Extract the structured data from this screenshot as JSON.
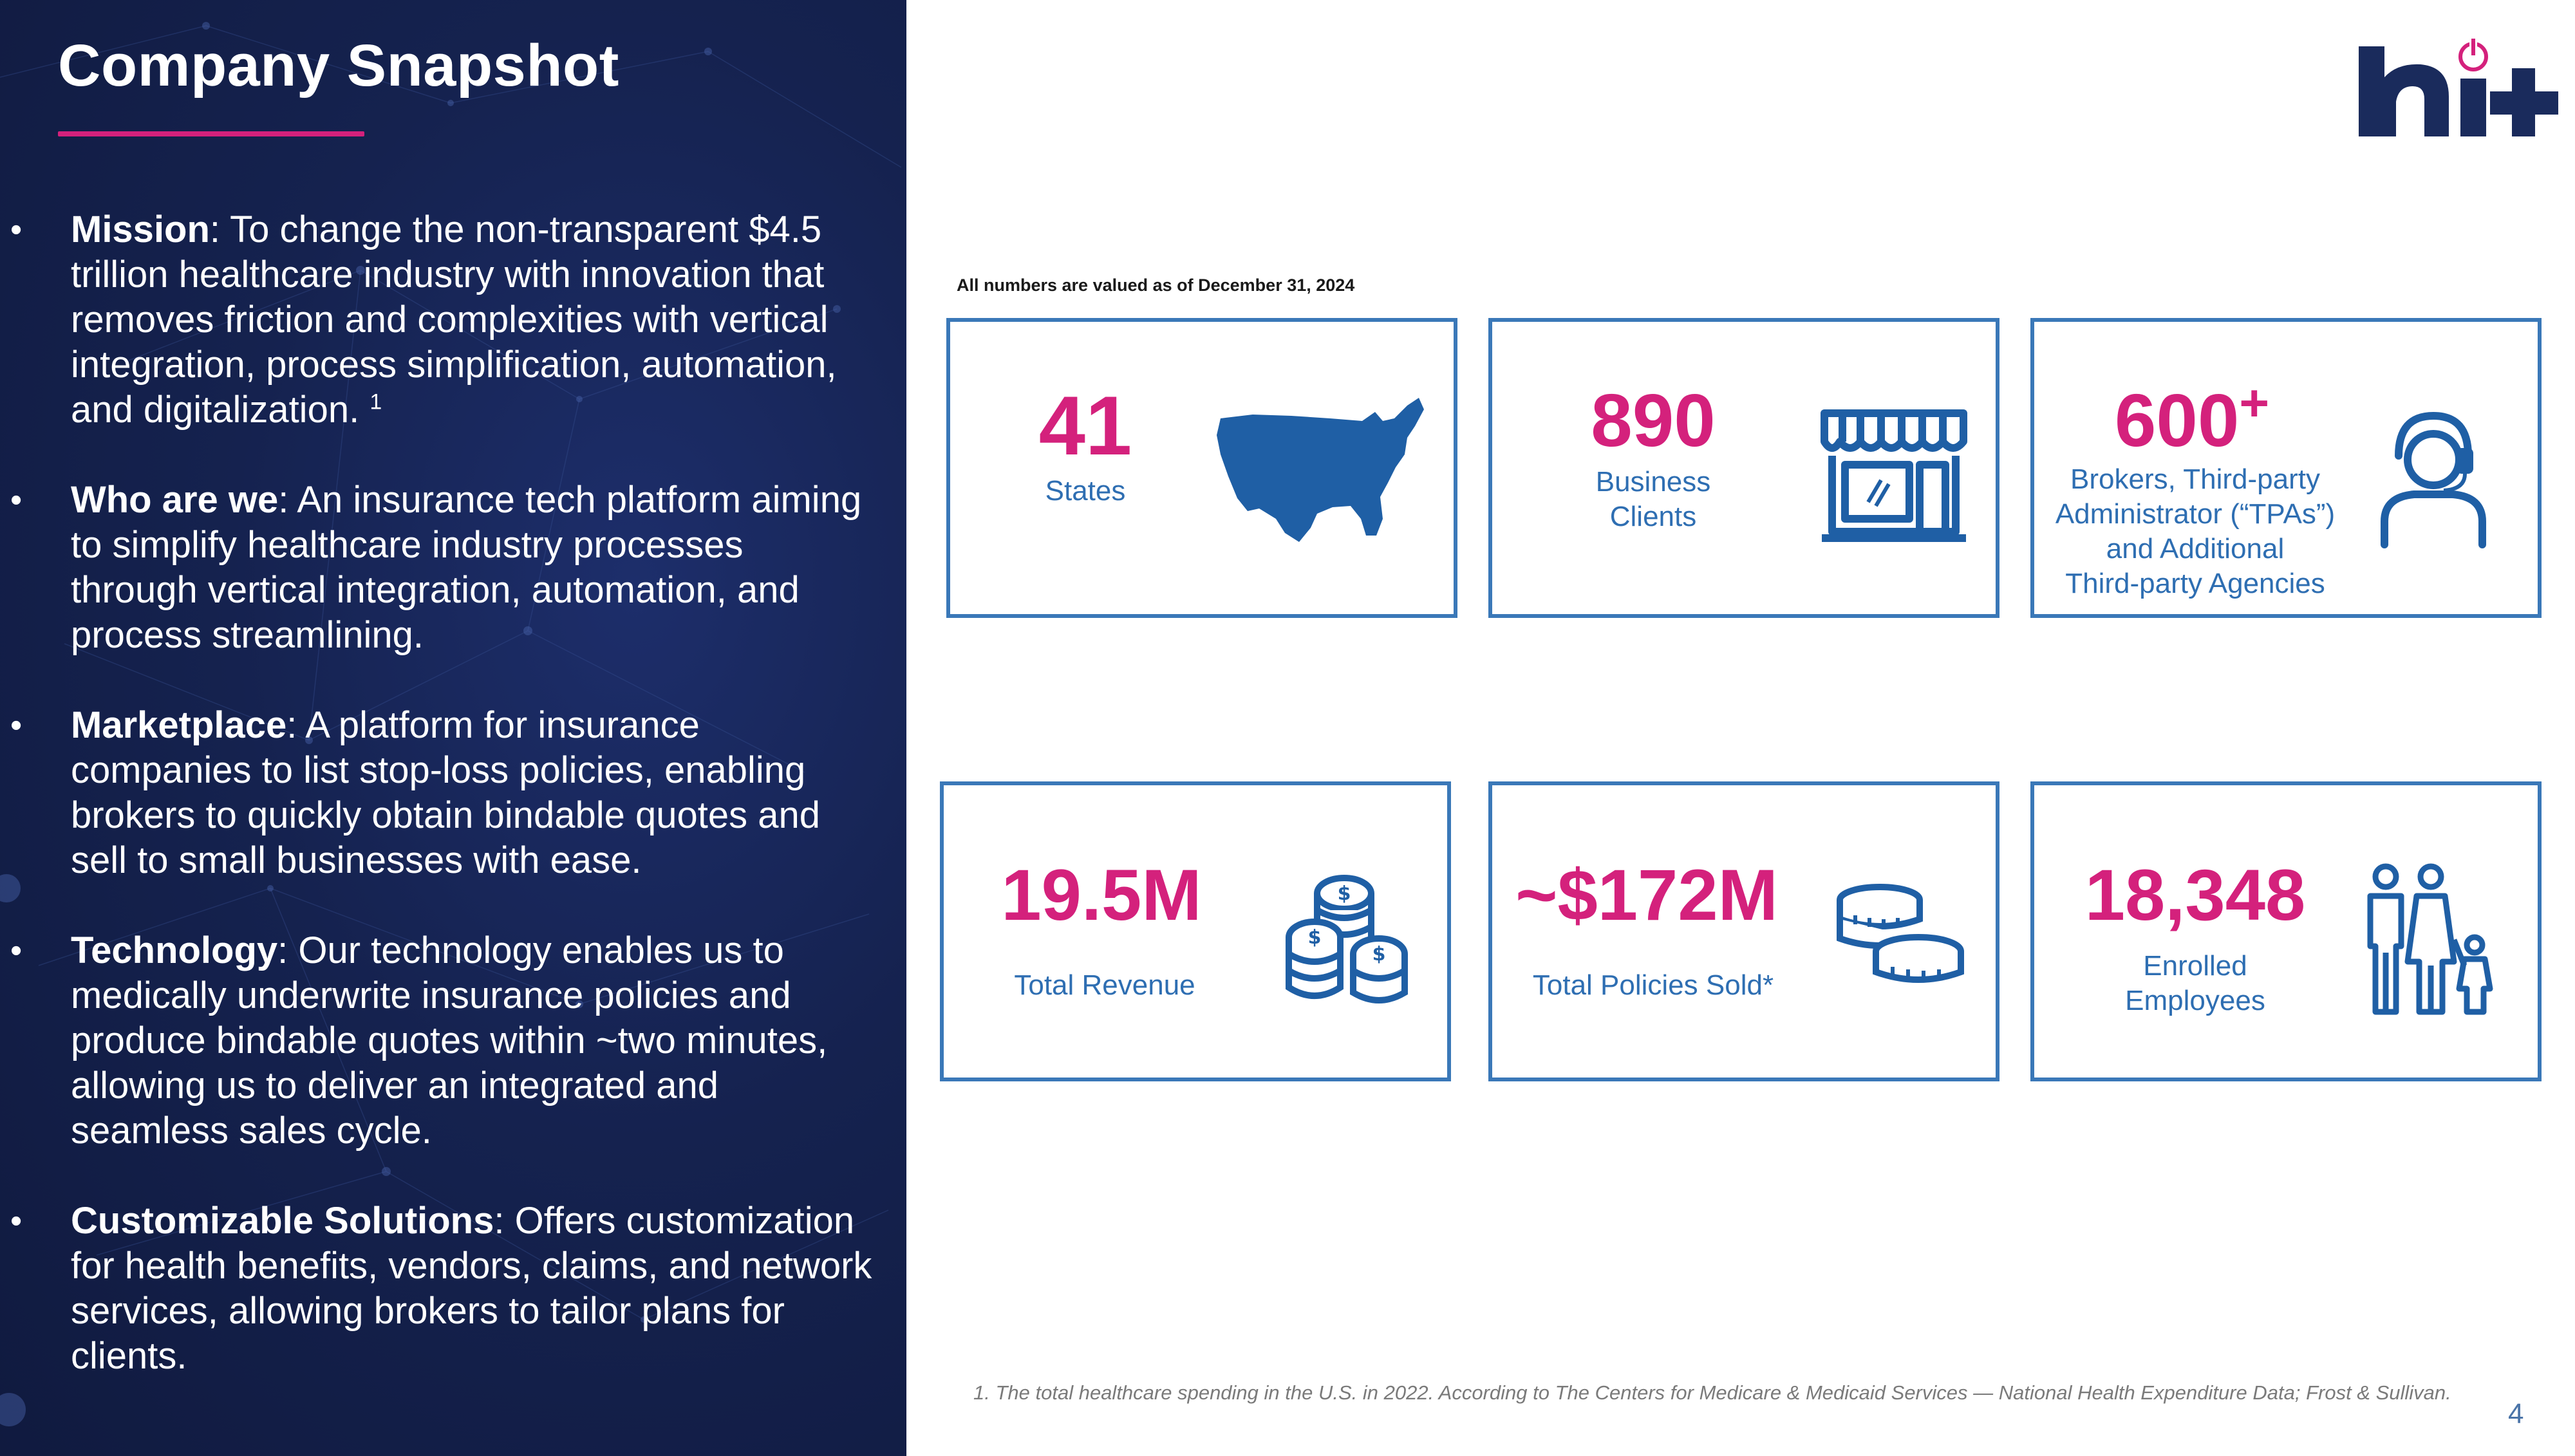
{
  "slide": {
    "title": "Company Snapshot",
    "page_number": "4"
  },
  "bullets": [
    {
      "term": "Mission",
      "text": ": To change the non-transparent $4.5 trillion healthcare industry with innovation that removes friction and complexities with vertical integration, process simplification, automation, and digitalization.",
      "superscript": "1"
    },
    {
      "term": "Who are we",
      "text": ": An insurance tech platform aiming to simplify healthcare industry processes through vertical integration, automation, and process streamlining.",
      "superscript": ""
    },
    {
      "term": "Marketplace",
      "text": ": A platform for insurance companies to list stop-loss policies, enabling brokers to quickly obtain bindable quotes and sell to small businesses with ease.",
      "superscript": ""
    },
    {
      "term": "Technology",
      "text": ": Our technology enables us to medically underwrite insurance policies and produce bindable quotes within ~two minutes, allowing us to deliver an integrated and seamless sales cycle.",
      "superscript": ""
    },
    {
      "term": "Customizable Solutions",
      "text": ": Offers customization for health benefits, vendors, claims, and network services, allowing brokers to tailor plans for clients.",
      "superscript": ""
    }
  ],
  "note": "All numbers are valued as of December 31, 2024",
  "stats": {
    "states": {
      "value": "41",
      "label": "States",
      "icon": "us-map-icon"
    },
    "clients": {
      "value": "890",
      "label_line1": "Business",
      "label_line2": "Clients",
      "icon": "storefront-icon"
    },
    "brokers": {
      "value": "600",
      "suffix": "+",
      "label_line1": "Brokers, Third-party",
      "label_line2": "Administrator (“TPAs”)",
      "label_line3": "and Additional",
      "label_line4": "Third-party Agencies",
      "icon": "headset-agent-icon"
    },
    "revenue": {
      "value": "19.5M",
      "label": "Total Revenue",
      "icon": "dollar-coins-icon"
    },
    "policies": {
      "value": "~$172M",
      "label": "Total Policies Sold*",
      "icon": "coin-stacks-icon"
    },
    "employees": {
      "value": "18,348",
      "label_line1": "Enrolled",
      "label_line2": "Employees",
      "icon": "family-icon"
    }
  },
  "footnote": "1. The total healthcare spending in the U.S. in 2022. According to The Centers for Medicare & Medicaid Services — National Health Expenditure Data; Frost & Sullivan.",
  "colors": {
    "panel": "#15224f",
    "accent": "#d4217c",
    "card_border": "#3a78b8",
    "label": "#2e6eb2",
    "icon": "#1f5fa5",
    "logo": "#1a2b5c"
  }
}
